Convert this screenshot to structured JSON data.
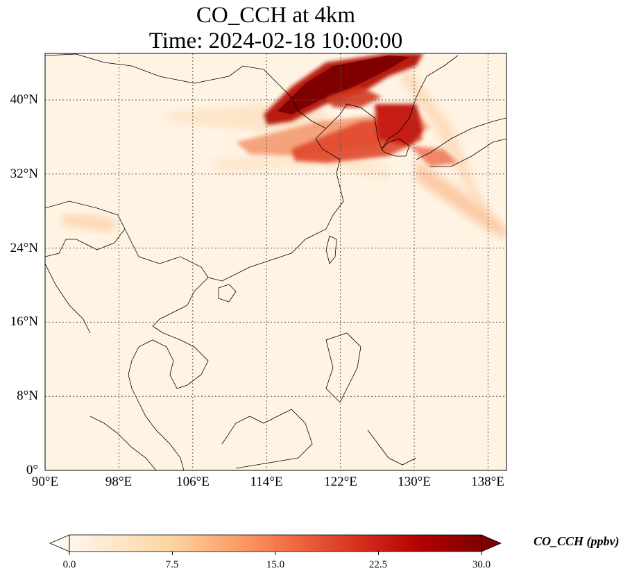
{
  "title": {
    "line1": "CO_CCH at 4km",
    "line2": "Time: 2024-02-18 10:00:00"
  },
  "map": {
    "variable": "CO_CCH",
    "level": "4km",
    "time": "2024-02-18 10:00:00",
    "lon_range": [
      90,
      140
    ],
    "lat_range": [
      0,
      45
    ],
    "gridlines": "dotted",
    "x_ticks": [
      "90°E",
      "98°E",
      "106°E",
      "114°E",
      "122°E",
      "130°E",
      "138°E"
    ],
    "y_ticks": [
      "0°",
      "8°N",
      "16°N",
      "24°N",
      "32°N",
      "40°N"
    ],
    "colormap": "OrRd",
    "colors": {
      "low": "#fff7ec",
      "mid": "#fdbb84",
      "high": "#7f0000",
      "coast": "#000000",
      "grid": "#555555"
    }
  },
  "colorbar": {
    "label": "CO_CCH (ppbv)",
    "ticks": [
      "0.0",
      "7.5",
      "15.0",
      "22.5",
      "30.0"
    ],
    "range": [
      0,
      30
    ],
    "extend": "both"
  }
}
